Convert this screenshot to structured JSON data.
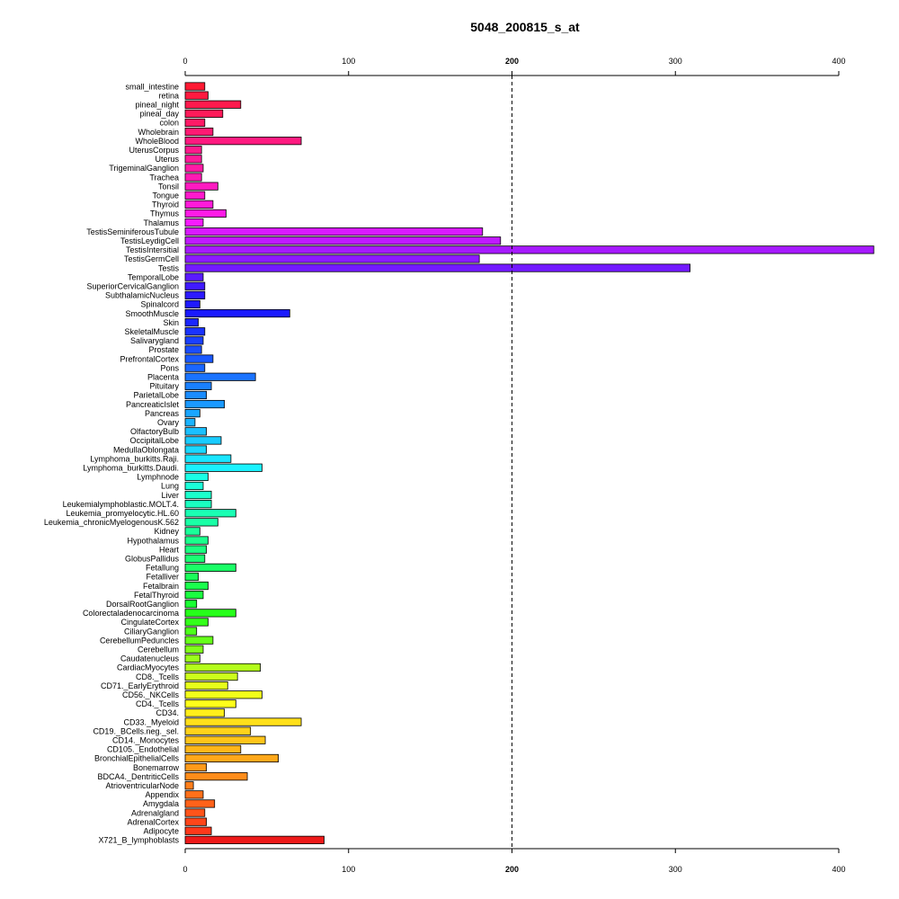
{
  "chart_data": {
    "type": "bar",
    "orientation": "horizontal",
    "title": "5048_200815_s_at",
    "xlabel": "",
    "ylabel": "",
    "xlim": [
      0,
      420
    ],
    "x_ticks": [
      0,
      100,
      200,
      300,
      400
    ],
    "reference_line": 200,
    "grid": false,
    "categories": [
      "small_intestine",
      "retina",
      "pineal_night",
      "pineal_day",
      "colon",
      "Wholebrain",
      "WholeBlood",
      "UterusCorpus",
      "Uterus",
      "TrigeminalGanglion",
      "Trachea",
      "Tonsil",
      "Tongue",
      "Thyroid",
      "Thymus",
      "Thalamus",
      "TestisSeminiferousTubule",
      "TestisLeydigCell",
      "TestisIntersitial",
      "TestisGermCell",
      "Testis",
      "TemporalLobe",
      "SuperiorCervicalGanglion",
      "SubthalamicNucleus",
      "Spinalcord",
      "SmoothMuscle",
      "Skin",
      "SkeletalMuscle",
      "Salivarygland",
      "Prostate",
      "PrefrontalCortex",
      "Pons",
      "Placenta",
      "Pituitary",
      "ParietalLobe",
      "PancreaticIslet",
      "Pancreas",
      "Ovary",
      "OlfactoryBulb",
      "OccipitalLobe",
      "MedullaOblongata",
      "Lymphoma_burkitts.Raji.",
      "Lymphoma_burkitts.Daudi.",
      "Lymphnode",
      "Lung",
      "Liver",
      "Leukemialymphoblastic.MOLT.4.",
      "Leukemia_promyelocytic.HL.60",
      "Leukemia_chronicMyelogenousK.562",
      "Kidney",
      "Hypothalamus",
      "Heart",
      "GlobusPallidus",
      "Fetallung",
      "Fetalliver",
      "Fetalbrain",
      "FetalThyroid",
      "DorsalRootGanglion",
      "Colorectaladenocarcinoma",
      "CingulateCortex",
      "CiliaryGanglion",
      "CerebellumPeduncles",
      "Cerebellum",
      "Caudatenucleus",
      "CardiacMyocytes",
      "CD8._Tcells",
      "CD71._EarlyErythroid",
      "CD56._NKCells",
      "CD4._Tcells",
      "CD34.",
      "CD33._Myeloid",
      "CD19._BCells.neg._sel.",
      "CD14._Monocytes",
      "CD105._Endothelial",
      "BronchialEpithelialCells",
      "Bonemarrow",
      "BDCA4._DentriticCells",
      "AtrioventricularNode",
      "Appendix",
      "Amygdala",
      "Adrenalgland",
      "AdrenalCortex",
      "Adipocyte",
      "X721_B_lymphoblasts"
    ],
    "values": [
      12,
      14,
      34,
      23,
      12,
      17,
      71,
      10,
      10,
      11,
      10,
      20,
      12,
      17,
      25,
      11,
      182,
      193,
      422,
      180,
      309,
      11,
      12,
      12,
      9,
      64,
      8,
      12,
      11,
      10,
      17,
      12,
      43,
      16,
      13,
      24,
      9,
      6,
      13,
      22,
      13,
      28,
      47,
      14,
      11,
      16,
      16,
      31,
      20,
      9,
      14,
      13,
      12,
      31,
      8,
      14,
      11,
      7,
      31,
      14,
      7,
      17,
      11,
      9,
      46,
      32,
      26,
      47,
      31,
      24,
      71,
      40,
      49,
      34,
      57,
      13,
      38,
      5,
      11,
      18,
      12,
      13,
      16,
      85
    ],
    "colors": [
      "#ff1a33",
      "#ff1a40",
      "#ff1a4d",
      "#ff1a59",
      "#ff1a66",
      "#ff1a73",
      "#ff1a80",
      "#ff1a8c",
      "#ff1a99",
      "#ff1aa6",
      "#ff1ab3",
      "#ff1ac0",
      "#ff1acc",
      "#ff1ad9",
      "#ff1ae6",
      "#f71aff",
      "#d91aff",
      "#bf1aff",
      "#a61aff",
      "#8c1aff",
      "#731aff",
      "#5a1aff",
      "#401aff",
      "#2d1aff",
      "#1f1aff",
      "#1a1aff",
      "#1a26ff",
      "#1a33ff",
      "#1a40ff",
      "#1a4dff",
      "#1a59ff",
      "#1a66ff",
      "#1a73ff",
      "#1a80ff",
      "#1a8cff",
      "#1a99ff",
      "#1aa6ff",
      "#1ab3ff",
      "#1ac0ff",
      "#1accff",
      "#1ad9ff",
      "#1ae6ff",
      "#1af2ff",
      "#1affe6",
      "#1affd9",
      "#1affcc",
      "#1affc0",
      "#1affb3",
      "#1affa6",
      "#1aff99",
      "#1aff8c",
      "#1aff80",
      "#1aff73",
      "#1aff66",
      "#1aff59",
      "#1aff4d",
      "#1aff40",
      "#1aff33",
      "#26ff1a",
      "#33ff1a",
      "#4dff1a",
      "#66ff1a",
      "#80ff1a",
      "#99ff1a",
      "#b3ff1a",
      "#ccff1a",
      "#e6ff1a",
      "#f2ff1a",
      "#ffff1a",
      "#ffee1a",
      "#ffe01a",
      "#ffd21a",
      "#ffc41a",
      "#ffb61a",
      "#ffa81a",
      "#ff9a1a",
      "#ff8c1a",
      "#ff7e1a",
      "#ff701a",
      "#ff621a",
      "#ff541a",
      "#ff461a",
      "#ff381a",
      "#ee1a1a"
    ]
  }
}
